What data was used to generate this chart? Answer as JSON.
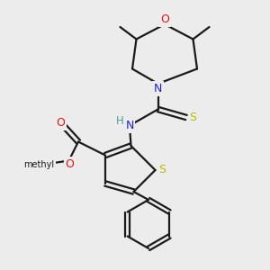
{
  "bg": "#ececec",
  "bc": "#1a1a1a",
  "colors": {
    "O": "#ee1111",
    "N": "#2222dd",
    "S": "#bbbb00",
    "C": "#1a1a1a",
    "H": "#559999"
  },
  "figsize": [
    3.0,
    3.0
  ],
  "dpi": 100
}
